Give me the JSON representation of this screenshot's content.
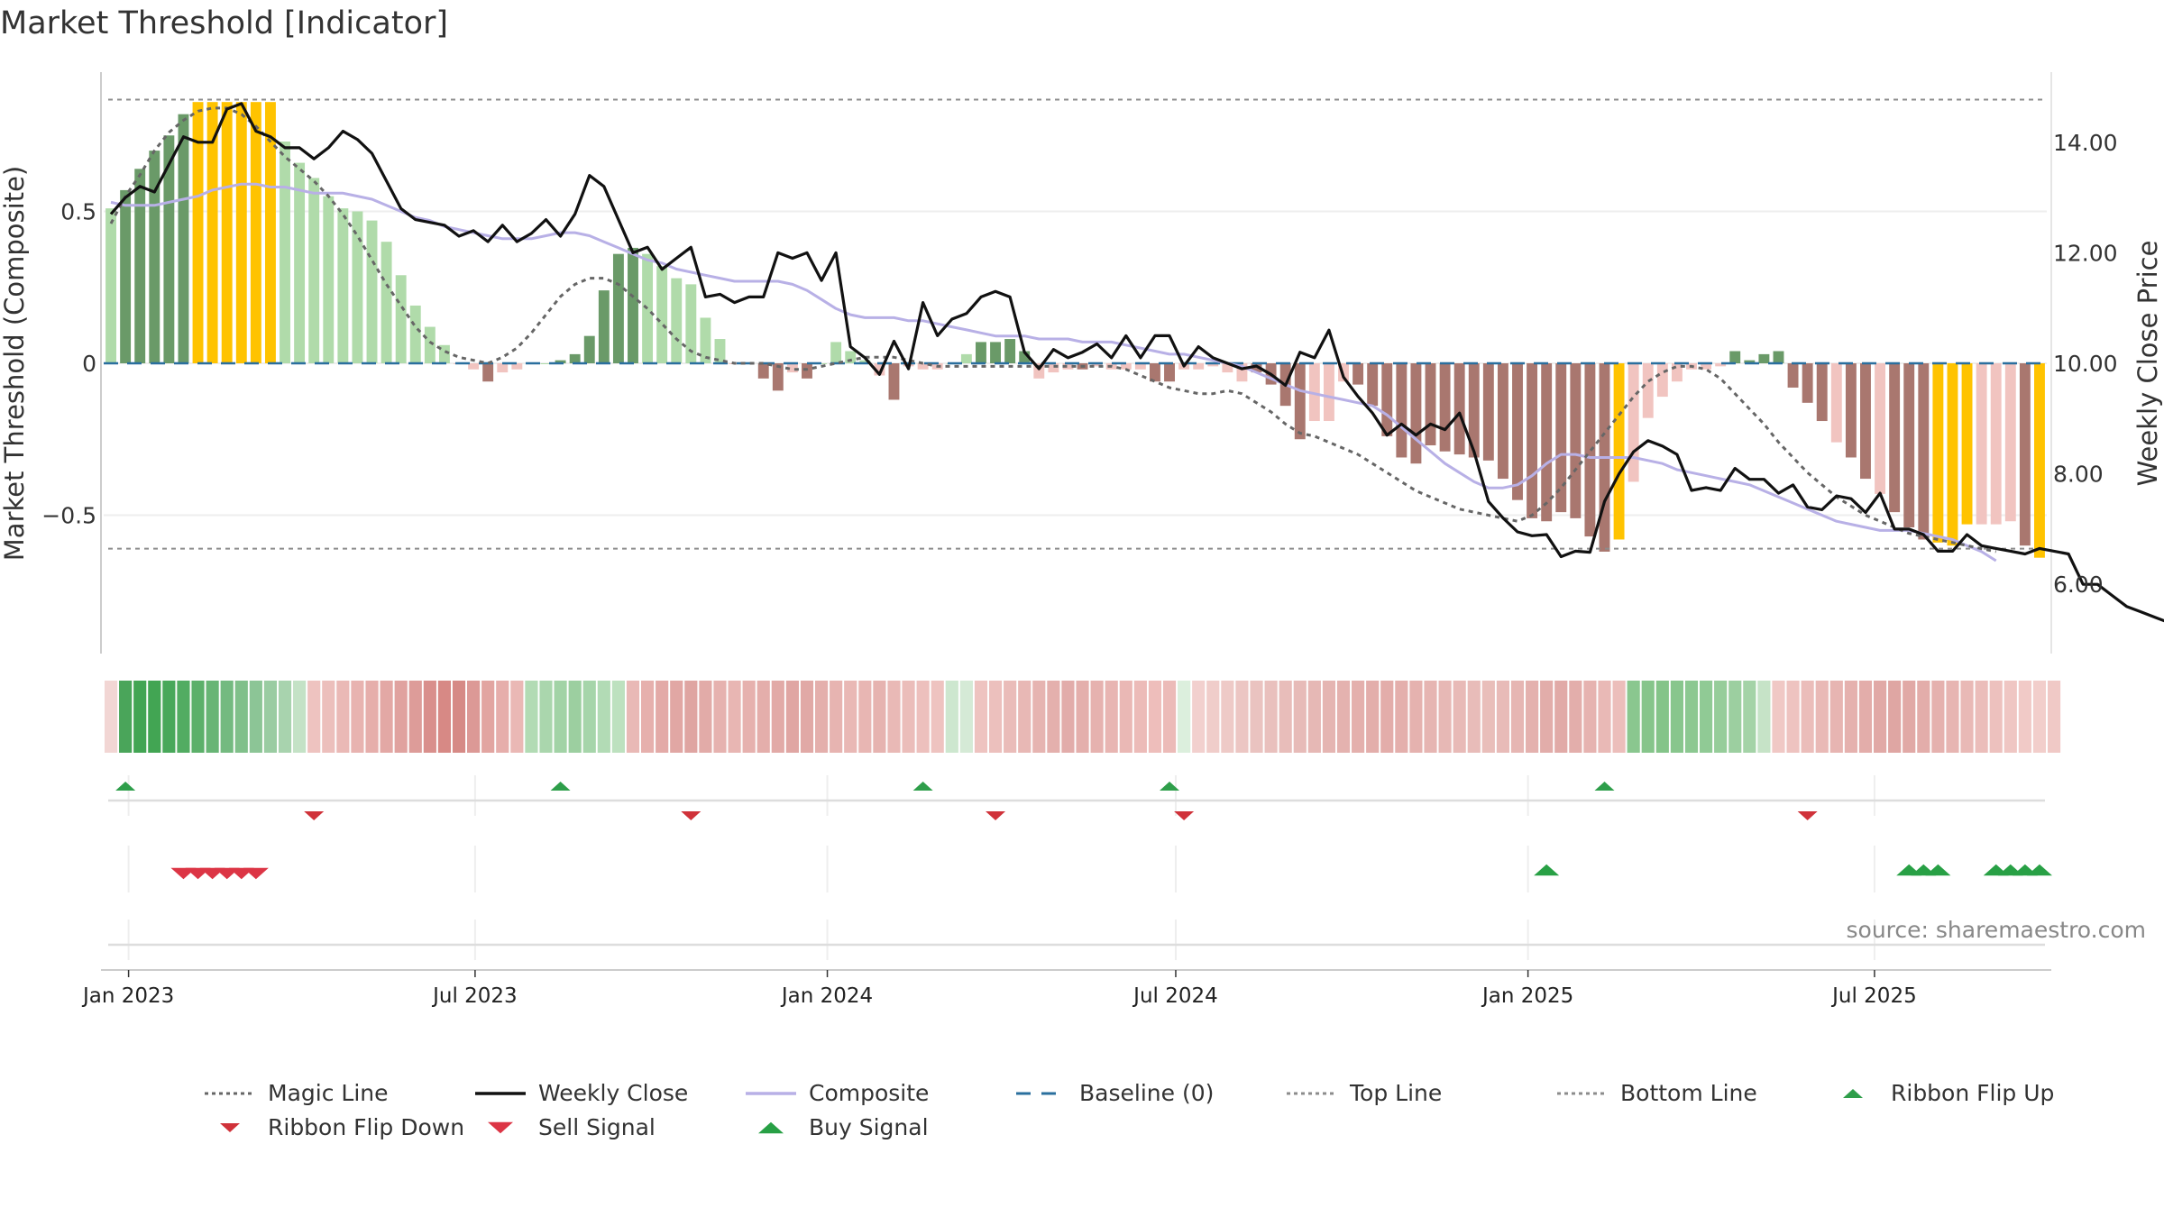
{
  "title": "Market Threshold [Indicator]",
  "source": "source: sharemaestro.com",
  "colors": {
    "magic_line": "#666666",
    "weekly_close": "#111111",
    "composite": "#b8b0e6",
    "baseline": "#2a6f9e",
    "top_line": "#8c8c8c",
    "bottom_line": "#8c8c8c",
    "flip_up": "#2e9e4a",
    "flip_down": "#d0323a",
    "sell": "#dc3545",
    "buy": "#28a045",
    "bar_strong_pos": "#6a9a68",
    "bar_weak_pos": "#b0dbaa",
    "bar_strong_neg": "#a9776f",
    "bar_weak_neg": "#f1c4c0",
    "bar_extreme": "#ffc300",
    "grid": "#eeeeee"
  },
  "chart_data": {
    "type": "bar",
    "xlabel": "",
    "ylabel": "Market Threshold (Composite)",
    "y2label": "Weekly Close Price",
    "ylim": [
      -0.95,
      0.95
    ],
    "y2lim": [
      5.0,
      15.4
    ],
    "yticks": [
      0.5,
      0,
      -0.5
    ],
    "ytick_labels": [
      "0.5",
      "0",
      "−0.5"
    ],
    "y2ticks": [
      14,
      12,
      10,
      8,
      6
    ],
    "y2tick_labels": [
      "14.00",
      "12.00",
      "10.00",
      "8.00",
      "6.00"
    ],
    "x_ticks": [
      "Jan 2023",
      "Jul 2023",
      "Jan 2024",
      "Jul 2024",
      "Jan 2025",
      "Jul 2025"
    ],
    "x_start": "2022-12-19",
    "x_end": "2025-09-29",
    "top_line": 0.868,
    "bottom_line": -0.61,
    "grid": true,
    "legend_position": "bottom",
    "series": [
      {
        "name": "Magic Line",
        "style": "dotted",
        "values": [
          0.46,
          0.55,
          0.62,
          0.7,
          0.76,
          0.8,
          0.83,
          0.84,
          0.84,
          0.82,
          0.78,
          0.73,
          0.68,
          0.64,
          0.6,
          0.55,
          0.49,
          0.42,
          0.34,
          0.26,
          0.19,
          0.12,
          0.07,
          0.04,
          0.02,
          0.01,
          0.0,
          0.02,
          0.05,
          0.1,
          0.16,
          0.22,
          0.26,
          0.28,
          0.28,
          0.26,
          0.22,
          0.18,
          0.13,
          0.08,
          0.04,
          0.02,
          0.01,
          0.0,
          0.0,
          0.0,
          -0.01,
          -0.02,
          -0.02,
          -0.01,
          0.0,
          0.01,
          0.02,
          0.02,
          0.02,
          0.01,
          0.0,
          -0.01,
          -0.01,
          -0.01,
          -0.01,
          -0.01,
          -0.01,
          -0.01,
          -0.01,
          -0.01,
          -0.01,
          -0.01,
          -0.01,
          -0.01,
          -0.02,
          -0.04,
          -0.06,
          -0.08,
          -0.09,
          -0.1,
          -0.1,
          -0.09,
          -0.1,
          -0.13,
          -0.16,
          -0.2,
          -0.23,
          -0.24,
          -0.26,
          -0.28,
          -0.3,
          -0.33,
          -0.36,
          -0.39,
          -0.42,
          -0.44,
          -0.46,
          -0.48,
          -0.49,
          -0.5,
          -0.51,
          -0.52,
          -0.5,
          -0.46,
          -0.41,
          -0.35,
          -0.29,
          -0.23,
          -0.17,
          -0.11,
          -0.06,
          -0.03,
          -0.01,
          -0.01,
          -0.02,
          -0.05,
          -0.1,
          -0.15,
          -0.2,
          -0.26,
          -0.31,
          -0.36,
          -0.4,
          -0.44,
          -0.47,
          -0.5,
          -0.52,
          -0.54,
          -0.56,
          -0.57,
          -0.58,
          -0.59,
          -0.6,
          -0.61,
          -0.62
        ]
      },
      {
        "name": "Weekly Close",
        "style": "solid",
        "values": [
          12.7,
          13.0,
          13.2,
          13.1,
          13.6,
          14.1,
          14.0,
          14.0,
          14.6,
          14.7,
          14.2,
          14.1,
          13.9,
          13.9,
          13.7,
          13.9,
          14.2,
          14.05,
          13.8,
          13.3,
          12.8,
          12.6,
          12.55,
          12.5,
          12.3,
          12.4,
          12.2,
          12.5,
          12.2,
          12.35,
          12.6,
          12.3,
          12.7,
          13.4,
          13.2,
          12.6,
          12.0,
          12.1,
          11.7,
          11.9,
          12.1,
          11.2,
          11.25,
          11.1,
          11.2,
          11.2,
          12.0,
          11.9,
          12.0,
          11.5,
          12.0,
          10.3,
          10.1,
          9.8,
          10.4,
          9.9,
          11.1,
          10.5,
          10.8,
          10.9,
          11.2,
          11.3,
          11.2,
          10.2,
          9.9,
          10.25,
          10.1,
          10.2,
          10.35,
          10.1,
          10.5,
          10.1,
          10.5,
          10.5,
          9.95,
          10.3,
          10.1,
          10.0,
          9.9,
          9.95,
          9.8,
          9.6,
          10.2,
          10.1,
          10.6,
          9.75,
          9.4,
          9.1,
          8.7,
          8.9,
          8.7,
          8.9,
          8.8,
          9.1,
          8.4,
          7.5,
          7.2,
          6.95,
          6.88,
          6.9,
          6.5,
          6.6,
          6.58,
          7.5,
          8.0,
          8.4,
          8.6,
          8.5,
          8.35,
          7.7,
          7.75,
          7.7,
          8.1,
          7.9,
          7.9,
          7.65,
          7.8,
          7.4,
          7.35,
          7.6,
          7.55,
          7.3,
          7.65,
          7.0,
          7.0,
          6.9,
          6.6,
          6.6,
          6.9,
          6.7,
          6.65,
          6.6,
          6.55,
          6.65,
          6.6,
          6.55,
          6.0,
          6.0,
          5.8,
          5.6,
          5.5,
          5.4,
          5.3,
          5.25,
          5.2,
          5.35,
          5.2
        ]
      },
      {
        "name": "Composite",
        "style": "solid",
        "values": [
          0.53,
          0.52,
          0.52,
          0.52,
          0.53,
          0.54,
          0.55,
          0.57,
          0.58,
          0.59,
          0.59,
          0.58,
          0.58,
          0.57,
          0.56,
          0.56,
          0.56,
          0.55,
          0.54,
          0.52,
          0.5,
          0.48,
          0.47,
          0.45,
          0.44,
          0.43,
          0.42,
          0.41,
          0.41,
          0.41,
          0.42,
          0.43,
          0.43,
          0.42,
          0.4,
          0.38,
          0.36,
          0.34,
          0.33,
          0.31,
          0.3,
          0.29,
          0.28,
          0.27,
          0.27,
          0.27,
          0.27,
          0.26,
          0.24,
          0.21,
          0.18,
          0.16,
          0.15,
          0.15,
          0.15,
          0.14,
          0.14,
          0.13,
          0.12,
          0.11,
          0.1,
          0.09,
          0.09,
          0.09,
          0.08,
          0.08,
          0.08,
          0.07,
          0.07,
          0.07,
          0.06,
          0.05,
          0.04,
          0.03,
          0.03,
          0.02,
          0.01,
          0.0,
          -0.01,
          -0.03,
          -0.05,
          -0.07,
          -0.09,
          -0.1,
          -0.11,
          -0.12,
          -0.13,
          -0.14,
          -0.17,
          -0.21,
          -0.25,
          -0.29,
          -0.33,
          -0.36,
          -0.39,
          -0.41,
          -0.41,
          -0.4,
          -0.37,
          -0.33,
          -0.3,
          -0.3,
          -0.31,
          -0.31,
          -0.31,
          -0.31,
          -0.32,
          -0.33,
          -0.35,
          -0.36,
          -0.37,
          -0.38,
          -0.39,
          -0.4,
          -0.42,
          -0.44,
          -0.46,
          -0.48,
          -0.5,
          -0.52,
          -0.53,
          -0.54,
          -0.55,
          -0.55,
          -0.55,
          -0.56,
          -0.57,
          -0.58,
          -0.6,
          -0.62,
          -0.65
        ]
      },
      {
        "name": "Baseline (0)",
        "style": "dashed",
        "values": [
          0
        ]
      },
      {
        "name": "Top Line",
        "style": "dotted",
        "values": [
          0.868
        ]
      },
      {
        "name": "Bottom Line",
        "style": "dotted",
        "values": [
          -0.61
        ]
      }
    ],
    "bars": [
      0.51,
      0.57,
      0.64,
      0.7,
      0.75,
      0.82,
      0.86,
      0.86,
      0.86,
      0.86,
      0.86,
      0.86,
      0.73,
      0.66,
      0.61,
      0.55,
      0.51,
      0.5,
      0.47,
      0.4,
      0.29,
      0.19,
      0.12,
      0.06,
      0.0,
      -0.02,
      -0.06,
      -0.03,
      -0.02,
      0.0,
      0.0,
      0.01,
      0.03,
      0.09,
      0.24,
      0.36,
      0.38,
      0.36,
      0.32,
      0.28,
      0.26,
      0.15,
      0.08,
      0.0,
      0.0,
      -0.05,
      -0.09,
      -0.03,
      -0.05,
      0.0,
      0.07,
      0.04,
      0.01,
      -0.04,
      -0.12,
      -0.01,
      -0.02,
      -0.02,
      0.0,
      0.03,
      0.07,
      0.07,
      0.08,
      0.04,
      -0.05,
      -0.03,
      -0.02,
      -0.02,
      -0.01,
      -0.02,
      -0.02,
      -0.02,
      -0.06,
      -0.06,
      -0.02,
      -0.02,
      -0.01,
      -0.03,
      -0.06,
      -0.03,
      -0.07,
      -0.14,
      -0.25,
      -0.19,
      -0.19,
      -0.06,
      -0.07,
      -0.14,
      -0.24,
      -0.31,
      -0.33,
      -0.27,
      -0.29,
      -0.3,
      -0.31,
      -0.32,
      -0.38,
      -0.45,
      -0.51,
      -0.52,
      -0.49,
      -0.51,
      -0.57,
      -0.62,
      -0.58,
      -0.39,
      -0.18,
      -0.11,
      -0.06,
      -0.02,
      -0.02,
      -0.01,
      0.04,
      0.01,
      0.03,
      0.04,
      -0.08,
      -0.13,
      -0.19,
      -0.26,
      -0.31,
      -0.38,
      -0.43,
      -0.49,
      -0.54,
      -0.58,
      -0.59,
      -0.6,
      -0.53,
      -0.53,
      -0.53,
      -0.52,
      -0.6,
      -0.64
    ],
    "bar_colors": [
      "bar_weak_pos",
      "bar_strong_pos",
      "bar_strong_pos",
      "bar_strong_pos",
      "bar_strong_pos",
      "bar_strong_pos",
      "bar_extreme",
      "bar_extreme",
      "bar_extreme",
      "bar_extreme",
      "bar_extreme",
      "bar_extreme",
      "bar_weak_pos",
      "bar_weak_pos",
      "bar_weak_pos",
      "bar_weak_pos",
      "bar_weak_pos",
      "bar_weak_pos",
      "bar_weak_pos",
      "bar_weak_pos",
      "bar_weak_pos",
      "bar_weak_pos",
      "bar_weak_pos",
      "bar_weak_pos",
      "bar_weak_neg",
      "bar_weak_neg",
      "bar_strong_neg",
      "bar_weak_neg",
      "bar_weak_neg",
      "bar_weak_pos",
      "bar_weak_pos",
      "bar_strong_pos",
      "bar_strong_pos",
      "bar_strong_pos",
      "bar_strong_pos",
      "bar_strong_pos",
      "bar_strong_pos",
      "bar_weak_pos",
      "bar_weak_pos",
      "bar_weak_pos",
      "bar_weak_pos",
      "bar_weak_pos",
      "bar_weak_pos",
      "bar_weak_neg",
      "bar_weak_neg",
      "bar_strong_neg",
      "bar_strong_neg",
      "bar_weak_neg",
      "bar_strong_neg",
      "bar_weak_pos",
      "bar_weak_pos",
      "bar_weak_pos",
      "bar_weak_pos",
      "bar_weak_neg",
      "bar_strong_neg",
      "bar_weak_neg",
      "bar_weak_neg",
      "bar_weak_neg",
      "bar_weak_pos",
      "bar_weak_pos",
      "bar_strong_pos",
      "bar_strong_pos",
      "bar_strong_pos",
      "bar_strong_pos",
      "bar_weak_neg",
      "bar_weak_neg",
      "bar_weak_neg",
      "bar_strong_neg",
      "bar_weak_neg",
      "bar_weak_neg",
      "bar_weak_neg",
      "bar_weak_neg",
      "bar_strong_neg",
      "bar_strong_neg",
      "bar_weak_neg",
      "bar_weak_neg",
      "bar_weak_neg",
      "bar_weak_neg",
      "bar_weak_neg",
      "bar_strong_neg",
      "bar_strong_neg",
      "bar_strong_neg",
      "bar_strong_neg",
      "bar_weak_neg",
      "bar_weak_neg",
      "bar_weak_neg",
      "bar_strong_neg",
      "bar_strong_neg",
      "bar_strong_neg",
      "bar_strong_neg",
      "bar_strong_neg",
      "bar_strong_neg",
      "bar_strong_neg",
      "bar_strong_neg",
      "bar_strong_neg",
      "bar_strong_neg",
      "bar_strong_neg",
      "bar_strong_neg",
      "bar_strong_neg",
      "bar_strong_neg",
      "bar_strong_neg",
      "bar_strong_neg",
      "bar_strong_neg",
      "bar_strong_neg",
      "bar_extreme",
      "bar_weak_neg",
      "bar_weak_neg",
      "bar_weak_neg",
      "bar_weak_neg",
      "bar_weak_neg",
      "bar_weak_neg",
      "bar_weak_neg",
      "bar_strong_pos",
      "bar_strong_pos",
      "bar_strong_pos",
      "bar_strong_pos",
      "bar_strong_neg",
      "bar_strong_neg",
      "bar_strong_neg",
      "bar_weak_neg",
      "bar_strong_neg",
      "bar_strong_neg",
      "bar_weak_neg",
      "bar_strong_neg",
      "bar_strong_neg",
      "bar_strong_neg",
      "bar_extreme",
      "bar_extreme",
      "bar_extreme",
      "bar_weak_neg",
      "bar_weak_neg",
      "bar_weak_neg",
      "bar_strong_neg",
      "bar_extreme",
      "bar_extreme"
    ],
    "ribbon": [
      "#f2d6d4",
      "#4aa55a",
      "#42a553",
      "#42a553",
      "#48a85a",
      "#52ac62",
      "#5cb06a",
      "#68b575",
      "#74ba80",
      "#80c08a",
      "#8cc596",
      "#9acca2",
      "#a8d3ae",
      "#c4e2c6",
      "#eec3c0",
      "#ecbfbc",
      "#eab9b6",
      "#e8b3b0",
      "#e6aeab",
      "#e3a8a5",
      "#e0a29f",
      "#dd9c99",
      "#d98f8c",
      "#d78985",
      "#d68a86",
      "#dc9996",
      "#e2a5a1",
      "#e6aeab",
      "#eab8b5",
      "#b2dbb4",
      "#aad6ad",
      "#a2d3a6",
      "#9ccfa0",
      "#a6d5aa",
      "#b2dbb5",
      "#bde1bf",
      "#e9b9b6",
      "#e6b0ad",
      "#e3aaa7",
      "#e1a7a4",
      "#dfa5a2",
      "#e2aba8",
      "#e6b2af",
      "#e8b6b3",
      "#e6b1ae",
      "#e4aeab",
      "#e2aaa7",
      "#e0a6a3",
      "#e1a9a6",
      "#e4afac",
      "#e7b4b1",
      "#e9b8b5",
      "#e8b6b3",
      "#e6b3b0",
      "#e9b9b6",
      "#ebbdba",
      "#edc0bd",
      "#eec3c0",
      "#cde7cf",
      "#d5ead6",
      "#eec3c0",
      "#ecc0bd",
      "#eabcb9",
      "#e8b8b5",
      "#e6b4b1",
      "#e4b0ad",
      "#e2acaa",
      "#e4afac",
      "#e6b2af",
      "#e8b5b2",
      "#eab8b5",
      "#ecbbb8",
      "#eebebb",
      "#ecbbb8",
      "#dcefdd",
      "#f2d0ce",
      "#f0cdca",
      "#eecac7",
      "#ecc6c3",
      "#eac3c0",
      "#e9c0bd",
      "#e8bdba",
      "#e7bbb8",
      "#e6b8b5",
      "#e5b5b2",
      "#e4b2af",
      "#e4b0ad",
      "#e3aeab",
      "#e3adaa",
      "#e4afac",
      "#e5b2af",
      "#e6b5b2",
      "#e7b8b5",
      "#e8bab7",
      "#e8bcb9",
      "#e9beba",
      "#e8bbb8",
      "#e6b6b3",
      "#e4b1ae",
      "#e2adaa",
      "#e1aaa7",
      "#e3aeab",
      "#e6b3b0",
      "#e9b9b6",
      "#ecbebb",
      "#8ac78f",
      "#86c58b",
      "#84c489",
      "#88c68d",
      "#8cc891",
      "#90ca95",
      "#96cd9a",
      "#9ccfa0",
      "#a4d3a7",
      "#c6e3c7",
      "#f0c8c5",
      "#eec3c0",
      "#ebbdba",
      "#e9b9b6",
      "#e7b5b2",
      "#e5b1ae",
      "#e3adaa",
      "#e1a9a6",
      "#dfa6a3",
      "#e1a9a6",
      "#e3adaa",
      "#e5b1ae",
      "#e7b5b2",
      "#e9b9b6",
      "#ebbdba",
      "#edc1be",
      "#efc6c3",
      "#f1cac7",
      "#f2cecb",
      "#f0c9c6"
    ],
    "ribbon_flip_up": [
      1,
      31,
      56,
      73,
      103
    ],
    "ribbon_flip_down": [
      14,
      40,
      61,
      74,
      117
    ],
    "sell_signals": [
      5,
      6,
      7,
      8,
      9,
      10
    ],
    "buy_signals": [
      99,
      124,
      125,
      126,
      130,
      131,
      132,
      133
    ]
  },
  "legend": [
    {
      "label": "Magic Line",
      "kind": "dotted",
      "color_key": "magic_line"
    },
    {
      "label": "Weekly Close",
      "kind": "solid",
      "color_key": "weekly_close"
    },
    {
      "label": "Composite",
      "kind": "solid",
      "color_key": "composite"
    },
    {
      "label": "Baseline (0)",
      "kind": "dashed",
      "color_key": "baseline"
    },
    {
      "label": "Top Line",
      "kind": "dotted",
      "color_key": "top_line"
    },
    {
      "label": "Bottom Line",
      "kind": "dotted",
      "color_key": "bottom_line"
    },
    {
      "label": "Ribbon Flip Up",
      "kind": "tri-up",
      "color_key": "flip_up"
    },
    {
      "label": "Ribbon Flip Down",
      "kind": "tri-down",
      "color_key": "flip_down"
    },
    {
      "label": "Sell Signal",
      "kind": "tri-down-big",
      "color_key": "sell"
    },
    {
      "label": "Buy Signal",
      "kind": "tri-up-big",
      "color_key": "buy"
    }
  ]
}
